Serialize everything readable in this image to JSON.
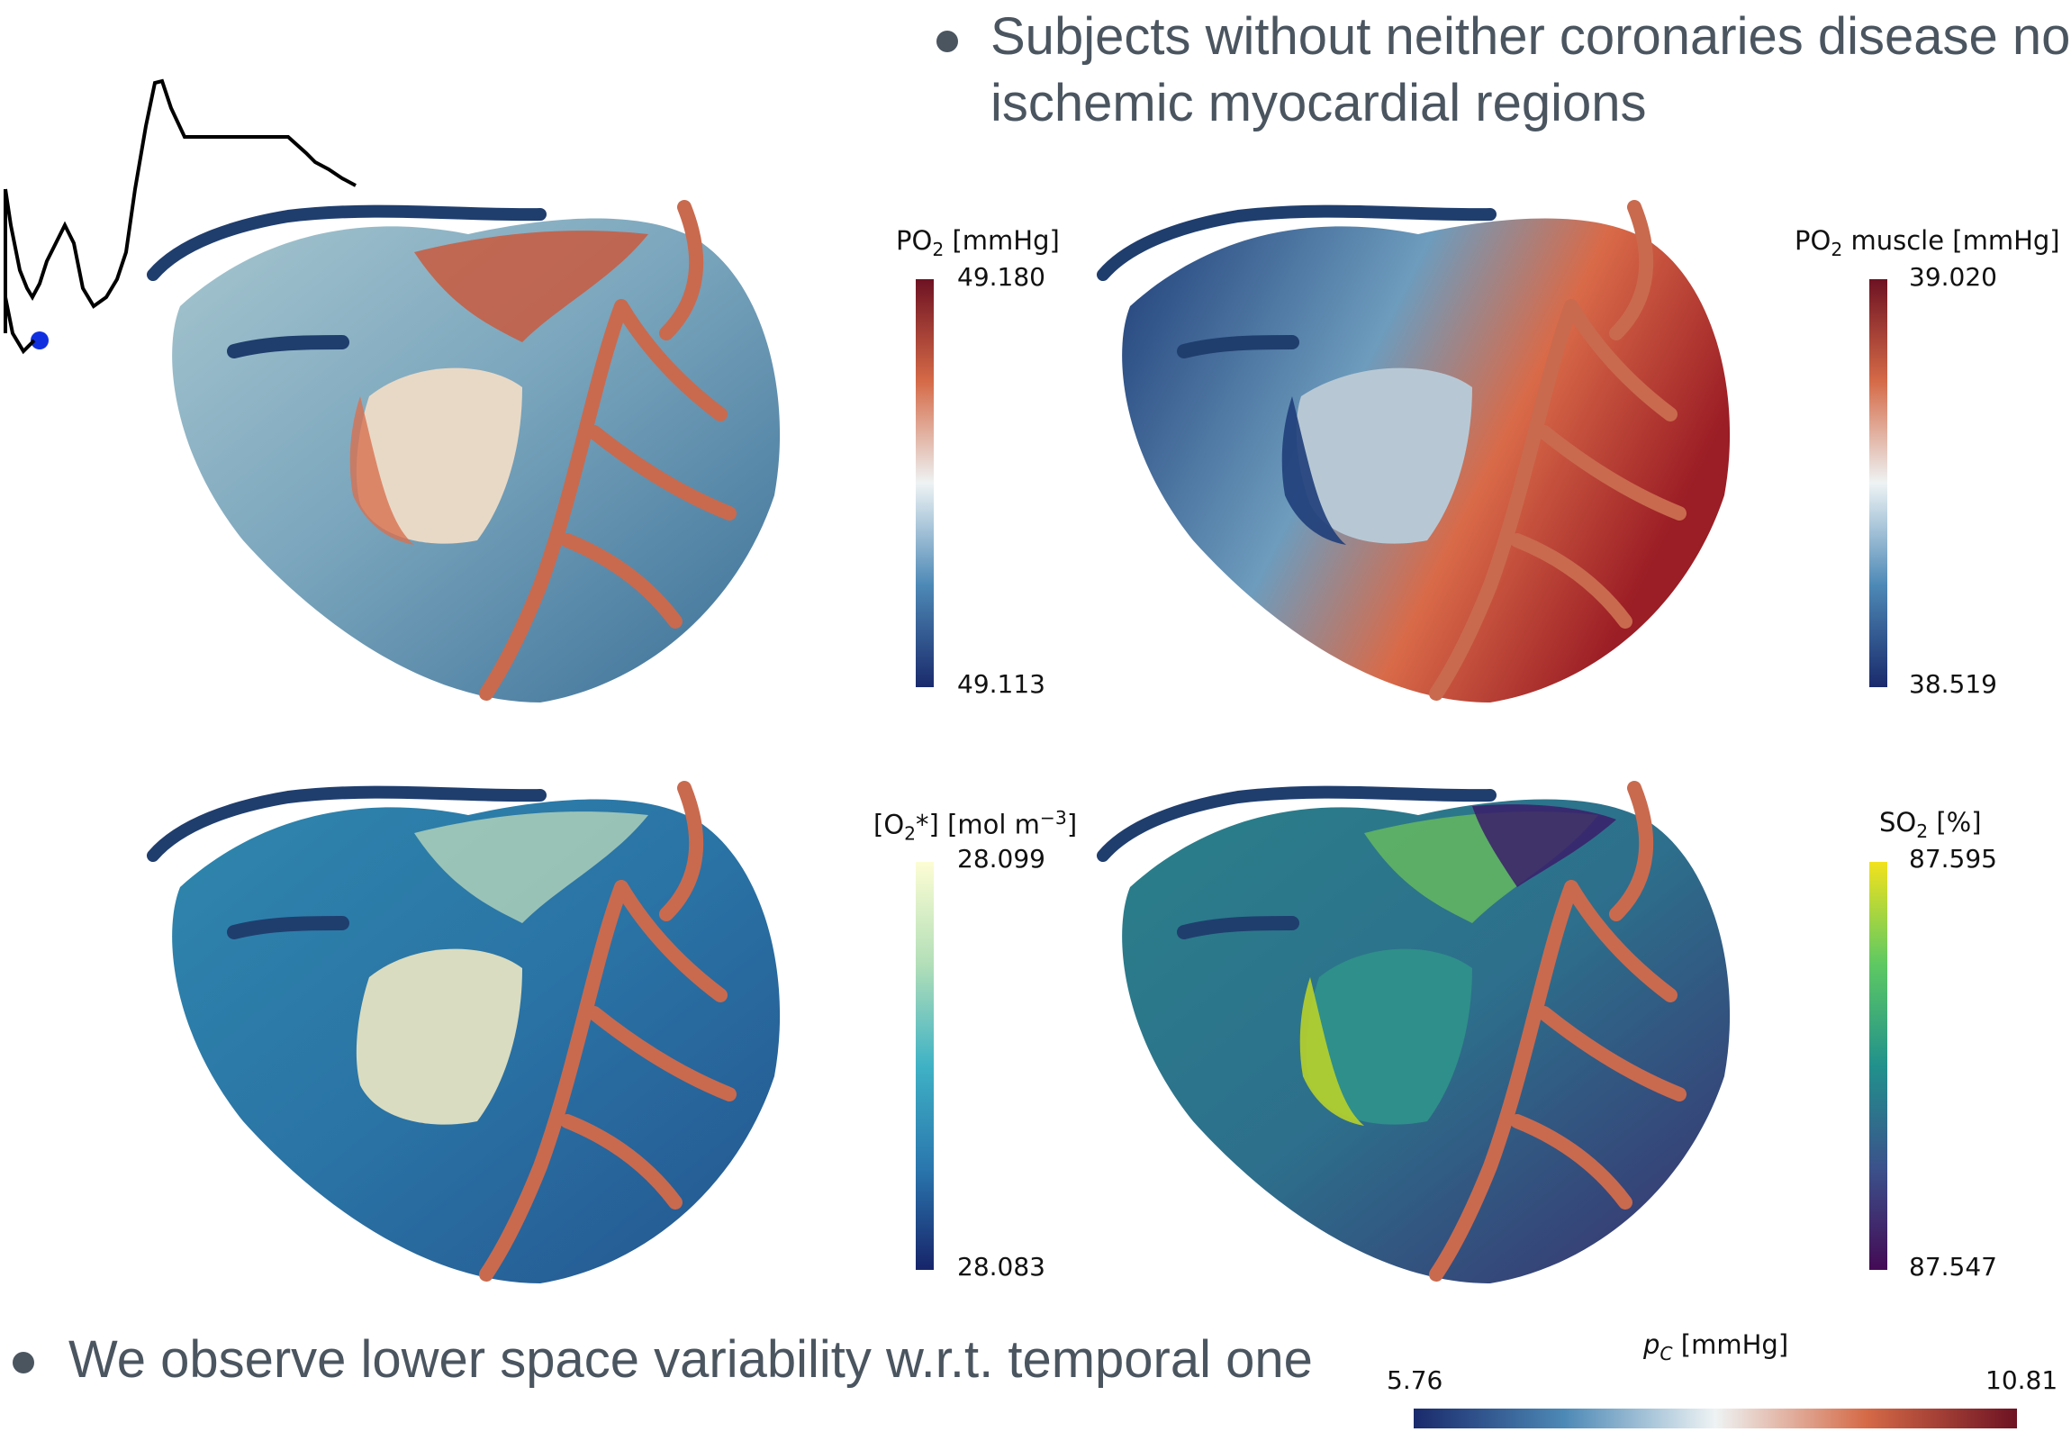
{
  "bullets": {
    "top": "Subjects without neither coronaries disease nor ischemic myocardial regions",
    "bottom": "We observe lower space variability w.r.t. temporal one"
  },
  "panels": [
    {
      "title_main": "PO",
      "title_sub": "2",
      "title_rest": " [mmHg]",
      "max": "49.180",
      "min": "49.113",
      "colormap": "cool-warm"
    },
    {
      "title_main": "PO",
      "title_sub": "2",
      "title_rest": " muscle [mmHg]",
      "max": "39.020",
      "min": "38.519",
      "colormap": "cool-warm"
    },
    {
      "title_main": "[O",
      "title_sub": "2",
      "title_rest": "*] [mol m",
      "title_sup": "−3",
      "title_end": "]",
      "max": "28.099",
      "min": "28.083",
      "colormap": "yellow-green-blue"
    },
    {
      "title_main": "SO",
      "title_sub": "2",
      "title_rest": " [%]",
      "max": "87.595",
      "min": "87.547",
      "colormap": "viridis"
    }
  ],
  "pressure_bar": {
    "title_main": "p",
    "title_sub": "C",
    "title_rest": " [mmHg]",
    "min": "5.76",
    "max": "10.81",
    "colormap": "cool-warm"
  },
  "colors": {
    "text": "#4a5560",
    "coronary": "#c96a4e",
    "vein": "#1f3e6e",
    "marker": "#1030e0"
  }
}
